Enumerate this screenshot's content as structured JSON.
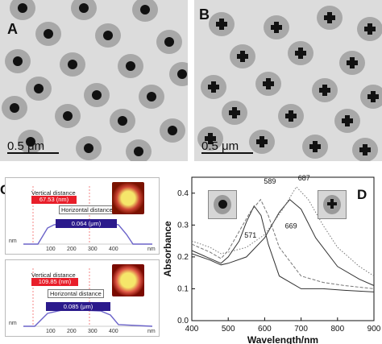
{
  "panels": {
    "a": {
      "label": "A",
      "scale": "0.5 μm"
    },
    "b": {
      "label": "B",
      "scale": "0.5 μm"
    },
    "c": {
      "label": "C",
      "top": {
        "vlabel": "Vertical distance",
        "vvalue": "67.53 (nm)",
        "hlabel": "Horizontal distance",
        "hvalue": "0.064 (μm)",
        "unit_left": "nm",
        "unit_right": "nm",
        "ticks": [
          "100",
          "200",
          "300",
          "400"
        ]
      },
      "bottom": {
        "vlabel": "Vertical distance",
        "vvalue": "109.85 (nm)",
        "hlabel": "Horizontal distance",
        "hvalue": "0.085 (μm)",
        "unit_left": "nm",
        "unit_right": "nm",
        "ticks": [
          "100",
          "200",
          "300",
          "400"
        ]
      }
    },
    "d": {
      "label": "D"
    }
  },
  "colors": {
    "vbox": "#e81e2a",
    "hbox": "#2b1a8c",
    "profile": "#6b63c9"
  },
  "chart_data": {
    "type": "line",
    "title": "",
    "xlabel": "Wavelength/nm",
    "ylabel": "Absorbance",
    "xlim": [
      400,
      900
    ],
    "ylim": [
      0.0,
      0.45
    ],
    "xticks": [
      "400",
      "500",
      "600",
      "700",
      "800",
      "900"
    ],
    "yticks": [
      "0.0",
      "0.1",
      "0.2",
      "0.3",
      "0.4"
    ],
    "annotations": [
      "571",
      "589",
      "669",
      "687"
    ],
    "series": [
      {
        "style": "solid",
        "x": [
          400,
          450,
          480,
          500,
          530,
          550,
          571,
          590,
          610,
          640,
          700,
          760,
          820,
          900
        ],
        "y": [
          0.22,
          0.195,
          0.18,
          0.2,
          0.25,
          0.31,
          0.36,
          0.33,
          0.24,
          0.14,
          0.1,
          0.1,
          0.095,
          0.09
        ]
      },
      {
        "style": "dashed",
        "x": [
          400,
          450,
          480,
          500,
          530,
          560,
          589,
          610,
          640,
          700,
          760,
          820,
          900
        ],
        "y": [
          0.24,
          0.215,
          0.195,
          0.22,
          0.28,
          0.34,
          0.38,
          0.33,
          0.23,
          0.14,
          0.12,
          0.11,
          0.1
        ]
      },
      {
        "style": "solid",
        "x": [
          400,
          450,
          480,
          500,
          550,
          600,
          640,
          669,
          700,
          740,
          800,
          860,
          900
        ],
        "y": [
          0.21,
          0.19,
          0.175,
          0.18,
          0.2,
          0.26,
          0.34,
          0.38,
          0.35,
          0.26,
          0.17,
          0.13,
          0.11
        ]
      },
      {
        "style": "dotted",
        "x": [
          400,
          450,
          480,
          500,
          550,
          600,
          650,
          687,
          720,
          760,
          800,
          860,
          900
        ],
        "y": [
          0.25,
          0.23,
          0.21,
          0.215,
          0.23,
          0.27,
          0.35,
          0.42,
          0.38,
          0.3,
          0.23,
          0.17,
          0.14
        ]
      }
    ]
  }
}
